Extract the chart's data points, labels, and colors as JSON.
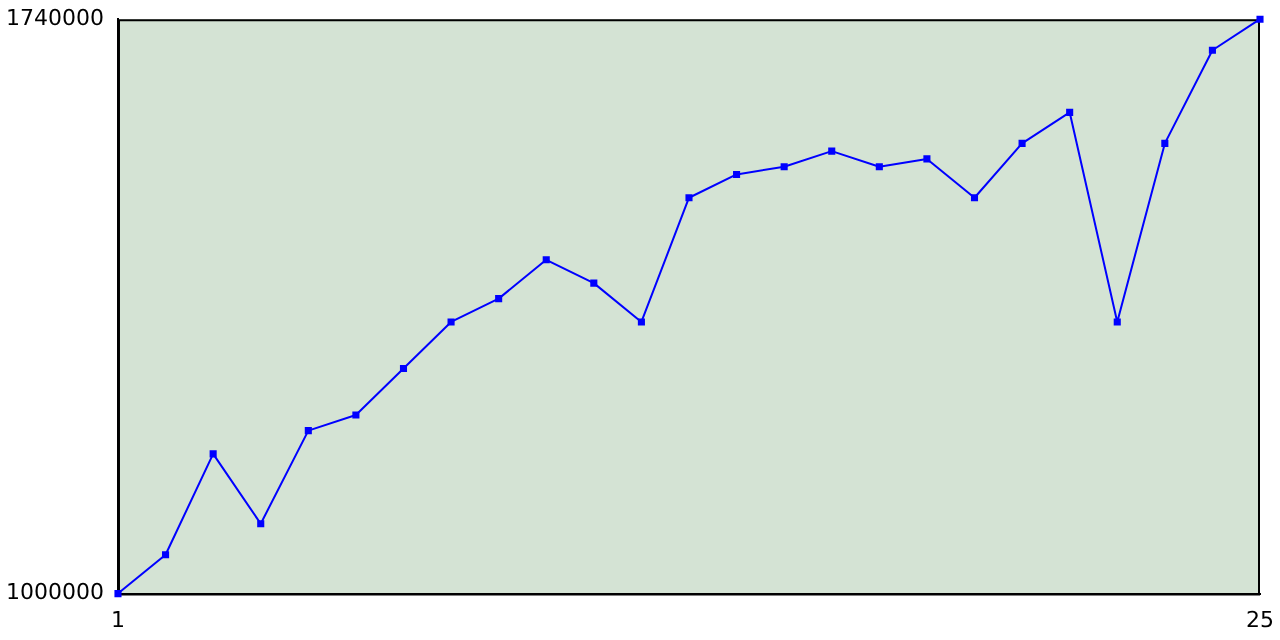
{
  "chart_data": {
    "type": "line",
    "x": [
      1,
      2,
      3,
      4,
      5,
      6,
      7,
      8,
      9,
      10,
      11,
      12,
      13,
      14,
      15,
      16,
      17,
      18,
      19,
      20,
      21,
      22,
      23,
      24,
      25
    ],
    "series": [
      {
        "color": "#0000ff",
        "values": [
          1000000,
          1050000,
          1180000,
          1090000,
          1210000,
          1230000,
          1290000,
          1350000,
          1380000,
          1430000,
          1400000,
          1350000,
          1510000,
          1540000,
          1550000,
          1570000,
          1550000,
          1560000,
          1510000,
          1580000,
          1620000,
          1350000,
          1580000,
          1700000,
          1740000
        ]
      }
    ],
    "xlim": [
      1,
      25
    ],
    "xticks": [
      1,
      25
    ],
    "ylim": [
      1000000,
      1740000
    ],
    "yticks": [
      1000000,
      1740000
    ],
    "grid": false,
    "legend": false,
    "marker": "square",
    "line_style": "solid"
  }
}
